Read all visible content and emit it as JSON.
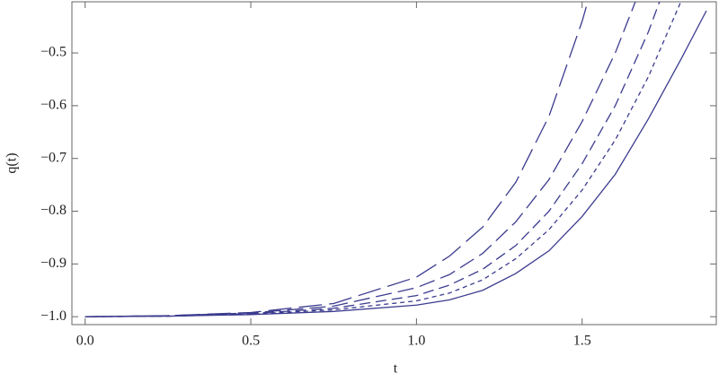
{
  "chart_data": {
    "type": "line",
    "xlabel": "t",
    "ylabel": "q(t)",
    "x": [
      0,
      0.25,
      0.5,
      0.75,
      1.0,
      1.1,
      1.2,
      1.3,
      1.4,
      1.5,
      1.6,
      1.7,
      1.8,
      1.875
    ],
    "series": [
      {
        "color": "#3b3b8f",
        "dash": [],
        "values": [
          -1,
          -0.999,
          -0.996,
          -0.99,
          -0.978,
          -0.968,
          -0.95,
          -0.918,
          -0.875,
          -0.81,
          -0.73,
          -0.625,
          -0.51,
          -0.42
        ]
      },
      {
        "color": "#3b3b8f",
        "dash": [
          5,
          4
        ],
        "values": [
          -1,
          -0.999,
          -0.995,
          -0.987,
          -0.97,
          -0.955,
          -0.93,
          -0.89,
          -0.835,
          -0.76,
          -0.665,
          -0.545,
          -0.4,
          null
        ]
      },
      {
        "color": "#3b3b8f",
        "dash": [
          12,
          6
        ],
        "values": [
          -1,
          -0.999,
          -0.994,
          -0.984,
          -0.96,
          -0.94,
          -0.91,
          -0.865,
          -0.8,
          -0.71,
          -0.6,
          -0.46,
          -0.29,
          null
        ]
      },
      {
        "color": "#3b3b8f",
        "dash": [
          18,
          7
        ],
        "values": [
          -1,
          -0.998,
          -0.993,
          -0.98,
          -0.945,
          -0.92,
          -0.88,
          -0.82,
          -0.74,
          -0.63,
          -0.5,
          -0.34,
          null,
          null
        ]
      },
      {
        "color": "#3b3b8f",
        "dash": [
          26,
          8
        ],
        "values": [
          -1,
          -0.998,
          -0.992,
          -0.975,
          -0.925,
          -0.885,
          -0.83,
          -0.745,
          -0.62,
          -0.44,
          -0.22,
          null,
          null,
          null
        ]
      }
    ],
    "xlim": [
      -0.04,
      1.905
    ],
    "ylim": [
      -1.015,
      -0.403
    ],
    "xticks": [
      {
        "value": 0,
        "label": "0.0"
      },
      0.5,
      {
        "value": 1,
        "label": "1.0"
      },
      1.5
    ],
    "yticks": [
      {
        "value": -1,
        "label": "−1.0"
      },
      {
        "value": -0.9,
        "label": "−0.9"
      },
      {
        "value": -0.8,
        "label": "−0.8"
      },
      {
        "value": -0.7,
        "label": "−0.7"
      },
      {
        "value": -0.6,
        "label": "−0.6"
      },
      {
        "value": -0.5,
        "label": "−0.5"
      }
    ]
  }
}
